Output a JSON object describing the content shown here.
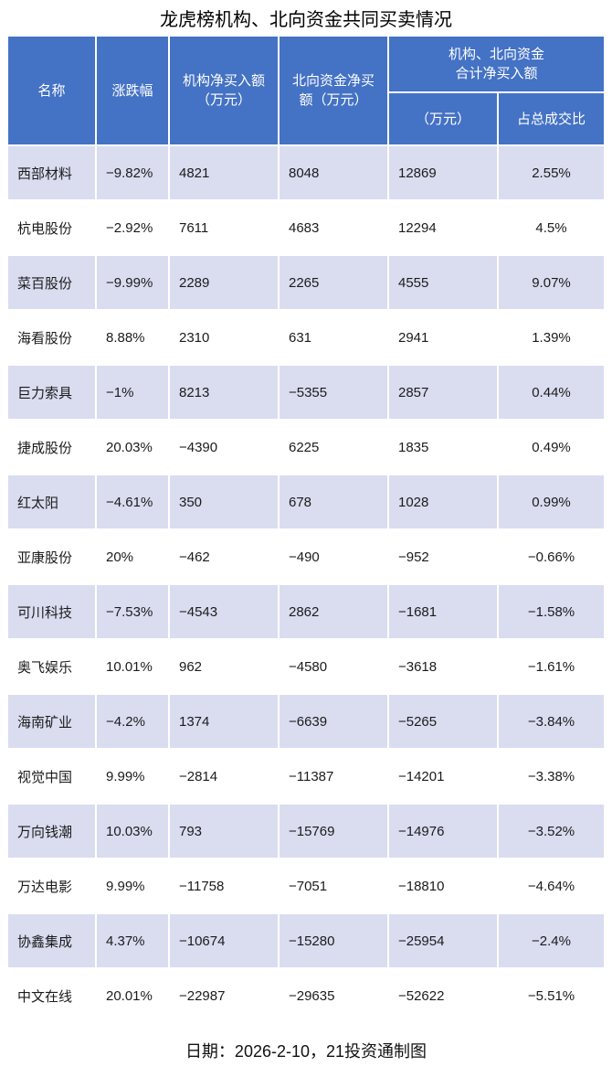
{
  "title": "龙虎榜机构、北向资金共同买卖情况",
  "footer": "日期：2026-2-10，21投资通制图",
  "colors": {
    "header_bg": "#4472c4",
    "row_alt_bg": "#dadcf0",
    "row_bg": "#ffffff",
    "header_text": "#ffffff",
    "body_text": "#1b1b1b"
  },
  "chart_data": {
    "type": "table",
    "title": "龙虎榜机构、北向资金共同买卖情况",
    "header": {
      "name": "名称",
      "change": "涨跌幅",
      "inst_net_buy": "机构净买入额\n（万元）",
      "north_net_buy": "北向资金净买\n额（万元）",
      "combined_group": "机构、北向资金\n合计净买入额",
      "combined_amount": "（万元）",
      "combined_ratio": "占总成交比"
    },
    "rows": [
      {
        "name": "西部材料",
        "change": "−9.82%",
        "inst": "4821",
        "north": "8048",
        "total": "12869",
        "ratio": "2.55%"
      },
      {
        "name": "杭电股份",
        "change": "−2.92%",
        "inst": "7611",
        "north": "4683",
        "total": "12294",
        "ratio": "4.5%"
      },
      {
        "name": "菜百股份",
        "change": "−9.99%",
        "inst": "2289",
        "north": "2265",
        "total": "4555",
        "ratio": "9.07%"
      },
      {
        "name": "海看股份",
        "change": "8.88%",
        "inst": "2310",
        "north": "631",
        "total": "2941",
        "ratio": "1.39%"
      },
      {
        "name": "巨力索具",
        "change": "−1%",
        "inst": "8213",
        "north": "−5355",
        "total": "2857",
        "ratio": "0.44%"
      },
      {
        "name": "捷成股份",
        "change": "20.03%",
        "inst": "−4390",
        "north": "6225",
        "total": "1835",
        "ratio": "0.49%"
      },
      {
        "name": "红太阳",
        "change": "−4.61%",
        "inst": "350",
        "north": "678",
        "total": "1028",
        "ratio": "0.99%"
      },
      {
        "name": "亚康股份",
        "change": "20%",
        "inst": "−462",
        "north": "−490",
        "total": "−952",
        "ratio": "−0.66%"
      },
      {
        "name": "可川科技",
        "change": "−7.53%",
        "inst": "−4543",
        "north": "2862",
        "total": "−1681",
        "ratio": "−1.58%"
      },
      {
        "name": "奥飞娱乐",
        "change": "10.01%",
        "inst": "962",
        "north": "−4580",
        "total": "−3618",
        "ratio": "−1.61%"
      },
      {
        "name": "海南矿业",
        "change": "−4.2%",
        "inst": "1374",
        "north": "−6639",
        "total": "−5265",
        "ratio": "−3.84%"
      },
      {
        "name": "视觉中国",
        "change": "9.99%",
        "inst": "−2814",
        "north": "−11387",
        "total": "−14201",
        "ratio": "−3.38%"
      },
      {
        "name": "万向钱潮",
        "change": "10.03%",
        "inst": "793",
        "north": "−15769",
        "total": "−14976",
        "ratio": "−3.52%"
      },
      {
        "name": "万达电影",
        "change": "9.99%",
        "inst": "−11758",
        "north": "−7051",
        "total": "−18810",
        "ratio": "−4.64%"
      },
      {
        "name": "协鑫集成",
        "change": "4.37%",
        "inst": "−10674",
        "north": "−15280",
        "total": "−25954",
        "ratio": "−2.4%"
      },
      {
        "name": "中文在线",
        "change": "20.01%",
        "inst": "−22987",
        "north": "−29635",
        "total": "−52622",
        "ratio": "−5.51%"
      }
    ],
    "footer": "日期：2026-2-10，21投资通制图"
  }
}
